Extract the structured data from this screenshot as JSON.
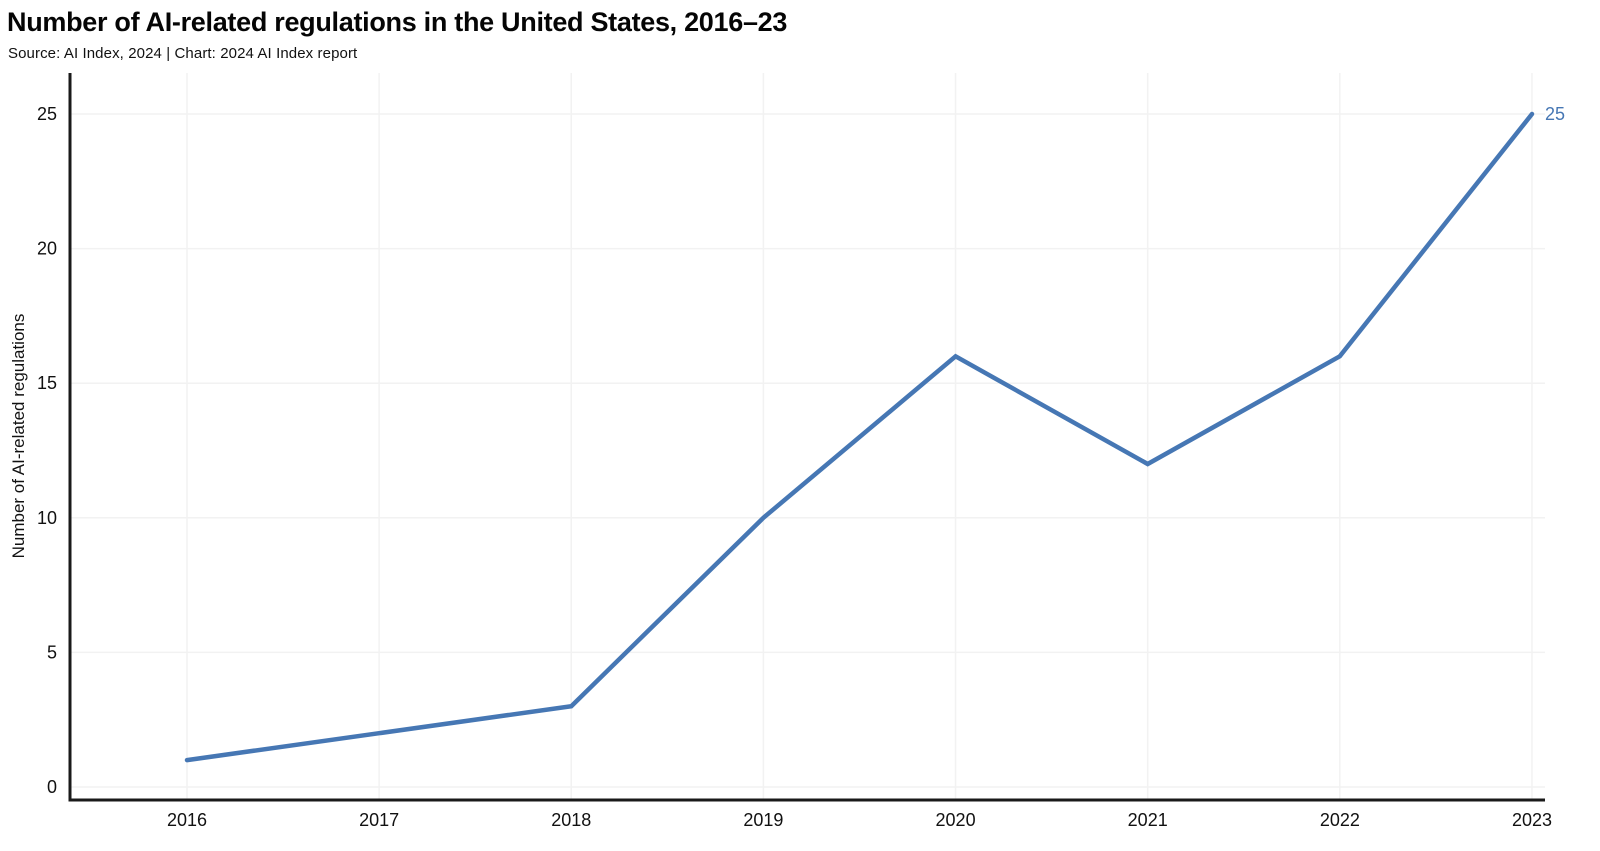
{
  "header": {
    "title": "Number of AI-related regulations in the United States, 2016–23",
    "subtitle": "Source: AI Index, 2024 | Chart: 2024 AI Index report"
  },
  "chart_data": {
    "type": "line",
    "categories": [
      "2016",
      "2017",
      "2018",
      "2019",
      "2020",
      "2021",
      "2022",
      "2023"
    ],
    "values": [
      1,
      2,
      3,
      10,
      16,
      12,
      16,
      25
    ],
    "title": "Number of AI-related regulations in the United States, 2016–23",
    "xlabel": "",
    "ylabel": "Number of AI-related regulations",
    "yticks": [
      0,
      5,
      10,
      15,
      20,
      25
    ],
    "ylim": [
      0,
      26.5
    ],
    "grid": true,
    "legend": "none",
    "endpoint_label": "25",
    "colors": {
      "line": "#4677b4",
      "axis": "#1a1a1a",
      "grid": "#f2f2f2",
      "tick_text": "#111111",
      "endpoint_text": "#4677b4"
    }
  }
}
